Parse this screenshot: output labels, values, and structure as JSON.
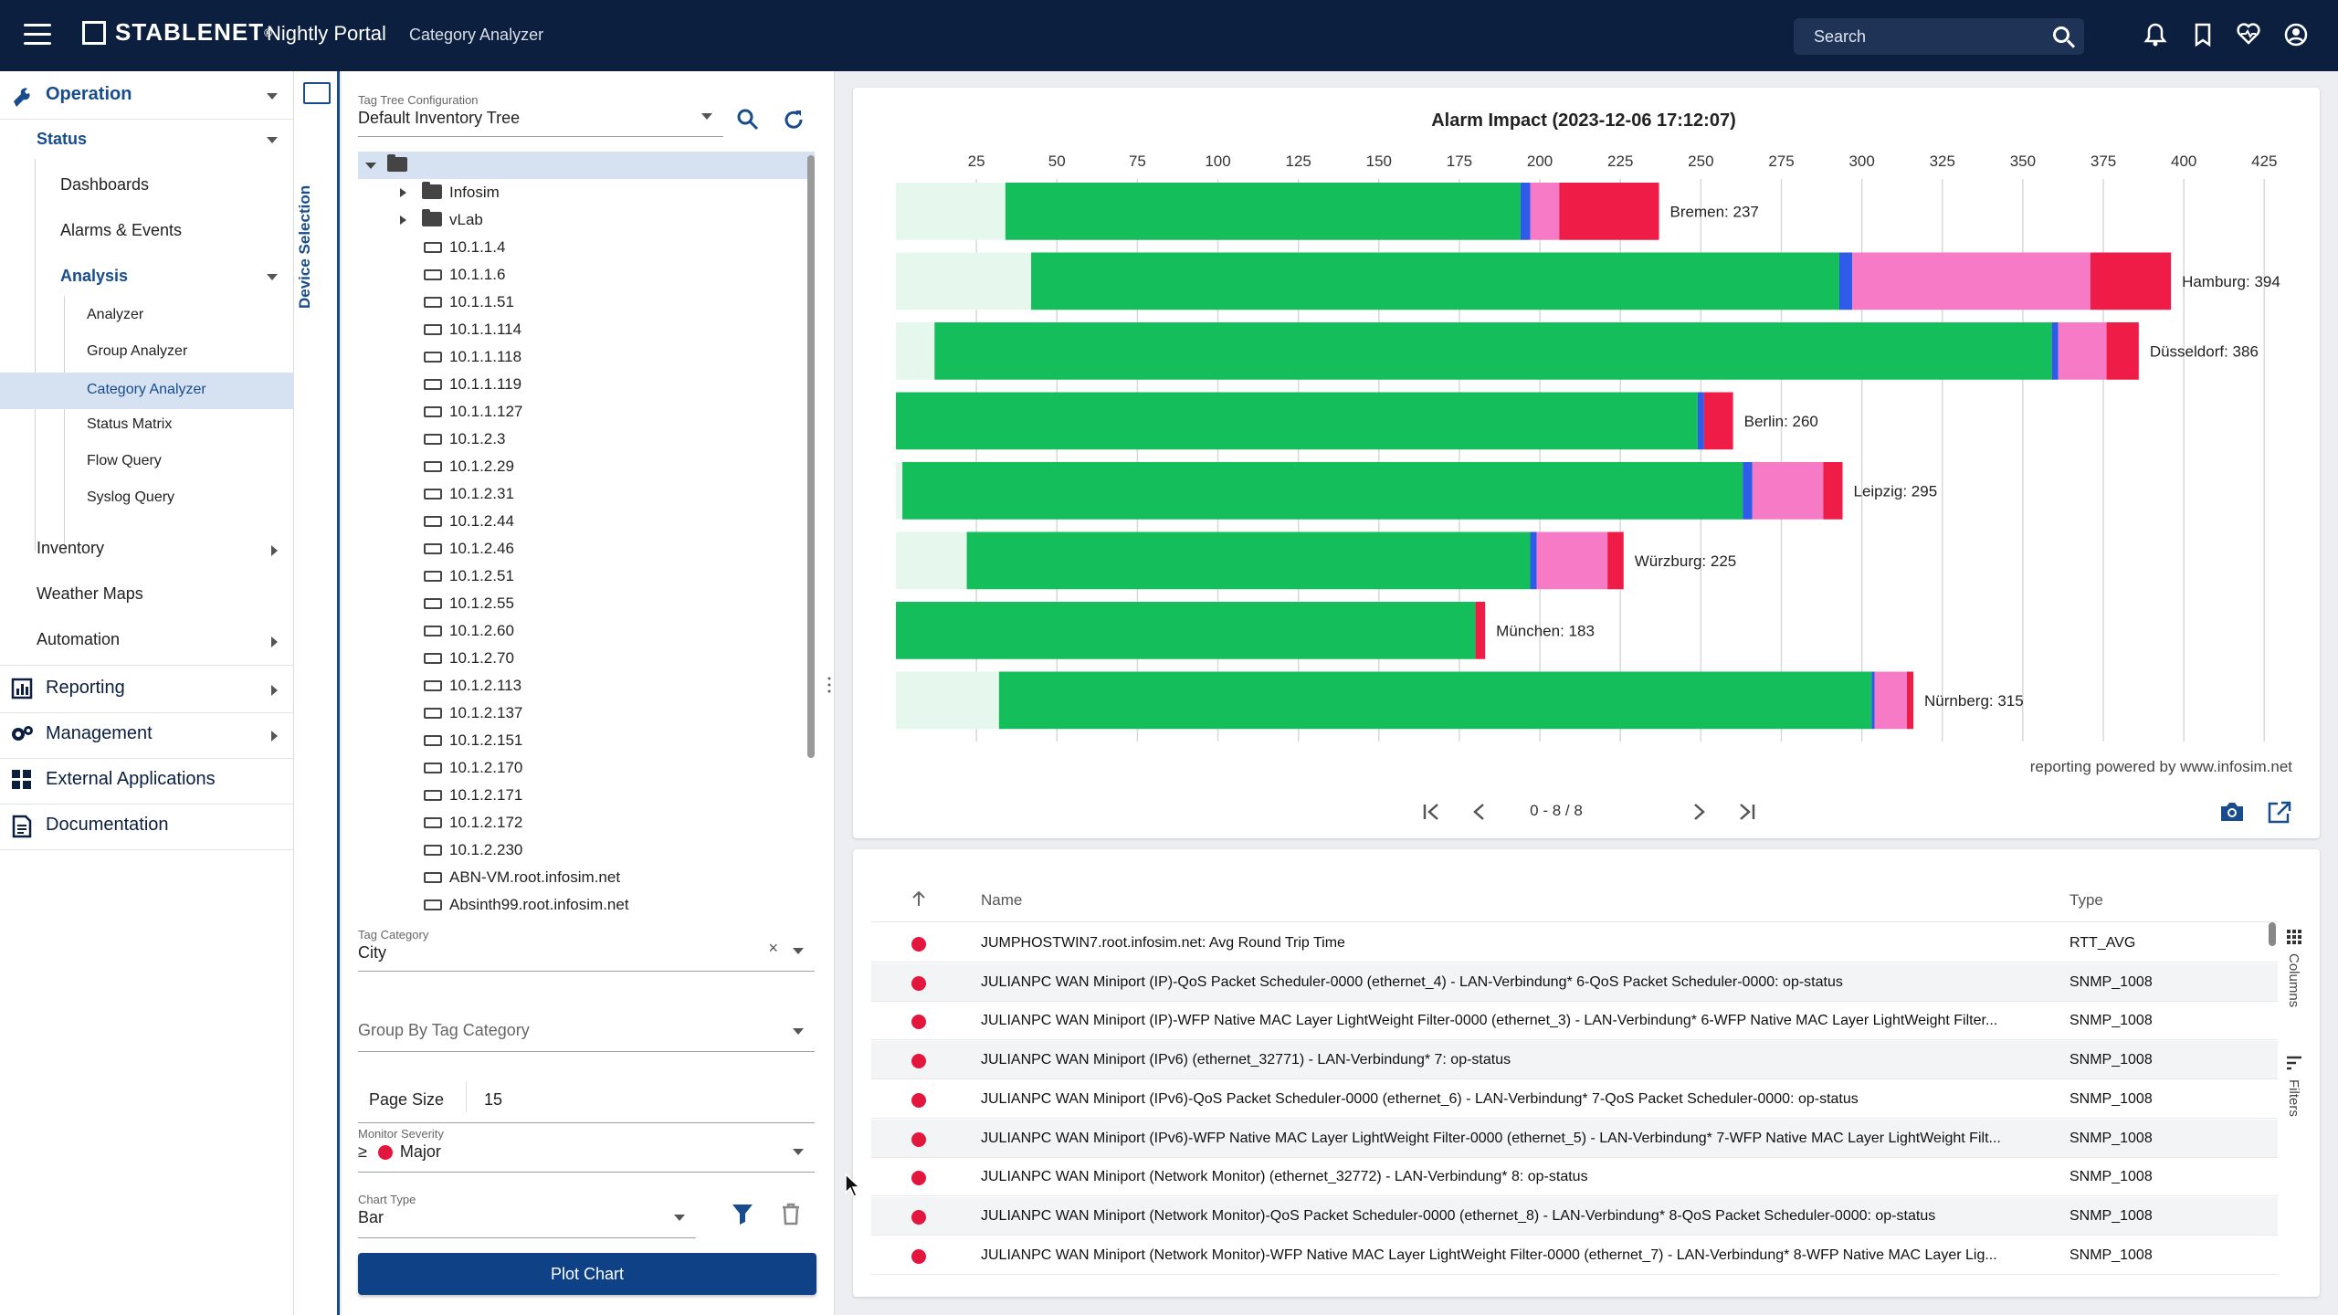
{
  "header": {
    "brand": "STABLENET",
    "reg": "®",
    "portal": "Nightly Portal",
    "breadcrumb": "Category Analyzer",
    "search_placeholder": "Search"
  },
  "nav": {
    "operation": "Operation",
    "status": "Status",
    "dashboards": "Dashboards",
    "alarms_events": "Alarms & Events",
    "analysis": "Analysis",
    "analyzer": "Analyzer",
    "group_analyzer": "Group Analyzer",
    "category_analyzer": "Category Analyzer",
    "status_matrix": "Status Matrix",
    "flow_query": "Flow Query",
    "syslog_query": "Syslog Query",
    "inventory": "Inventory",
    "weather_maps": "Weather Maps",
    "automation": "Automation",
    "reporting": "Reporting",
    "management": "Management",
    "external_apps": "External Applications",
    "documentation": "Documentation"
  },
  "device_tab_label": "Device Selection",
  "panel": {
    "tag_tree_label": "Tag Tree Configuration",
    "tag_tree_value": "Default Inventory Tree",
    "tree": [
      {
        "type": "root",
        "label": ""
      },
      {
        "type": "folder",
        "label": "Infosim"
      },
      {
        "type": "folder",
        "label": "vLab"
      },
      {
        "type": "device",
        "label": "10.1.1.4"
      },
      {
        "type": "device",
        "label": "10.1.1.6"
      },
      {
        "type": "device",
        "label": "10.1.1.51"
      },
      {
        "type": "device",
        "label": "10.1.1.114"
      },
      {
        "type": "device",
        "label": "10.1.1.118"
      },
      {
        "type": "device",
        "label": "10.1.1.119"
      },
      {
        "type": "device",
        "label": "10.1.1.127"
      },
      {
        "type": "device",
        "label": "10.1.2.3"
      },
      {
        "type": "device",
        "label": "10.1.2.29"
      },
      {
        "type": "device",
        "label": "10.1.2.31"
      },
      {
        "type": "device",
        "label": "10.1.2.44"
      },
      {
        "type": "device",
        "label": "10.1.2.46"
      },
      {
        "type": "device",
        "label": "10.1.2.51"
      },
      {
        "type": "device",
        "label": "10.1.2.55"
      },
      {
        "type": "device",
        "label": "10.1.2.60"
      },
      {
        "type": "device",
        "label": "10.1.2.70"
      },
      {
        "type": "device",
        "label": "10.1.2.113"
      },
      {
        "type": "device",
        "label": "10.1.2.137"
      },
      {
        "type": "device",
        "label": "10.1.2.151"
      },
      {
        "type": "device",
        "label": "10.1.2.170"
      },
      {
        "type": "device",
        "label": "10.1.2.171"
      },
      {
        "type": "device",
        "label": "10.1.2.172"
      },
      {
        "type": "device",
        "label": "10.1.2.230"
      },
      {
        "type": "device",
        "label": "ABN-VM.root.infosim.net"
      },
      {
        "type": "device",
        "label": "Absinth99.root.infosim.net"
      }
    ],
    "tag_category_label": "Tag Category",
    "tag_category_value": "City",
    "group_by_label": "Group By Tag Category",
    "page_size_label": "Page Size",
    "page_size_value": "15",
    "severity_label": "Monitor Severity",
    "severity_op": "≥",
    "severity_value": "Major",
    "chart_type_label": "Chart Type",
    "chart_type_value": "Bar",
    "plot_button": "Plot Chart"
  },
  "chart_data": {
    "type": "bar",
    "orientation": "horizontal",
    "stacked": true,
    "title": "Alarm Impact (2023-12-06 17:12:07)",
    "xlim": [
      0,
      432
    ],
    "xticks": [
      25,
      50,
      75,
      100,
      125,
      150,
      175,
      200,
      225,
      250,
      275,
      300,
      325,
      350,
      375,
      400,
      425
    ],
    "grid": true,
    "categories": [
      "Bremen",
      "Hamburg",
      "Düsseldorf",
      "Berlin",
      "Leipzig",
      "Würzburg",
      "München",
      "Nürnberg"
    ],
    "totals": [
      237,
      394,
      386,
      260,
      295,
      225,
      183,
      315
    ],
    "series": [
      {
        "color": "#e6f7ee",
        "values": [
          34,
          42,
          12,
          0,
          2,
          22,
          0,
          32
        ]
      },
      {
        "color": "#13be5b",
        "values": [
          160,
          251,
          347,
          249,
          261,
          175,
          180,
          271
        ]
      },
      {
        "color": "#2e5be8",
        "values": [
          3,
          4,
          2,
          2,
          3,
          2,
          0,
          1
        ]
      },
      {
        "color": "#f77ac7",
        "values": [
          9,
          74,
          15,
          0,
          22,
          22,
          0,
          10
        ]
      },
      {
        "color": "#f01c48",
        "values": [
          31,
          25,
          10,
          9,
          6,
          5,
          3,
          2
        ]
      }
    ],
    "footer": "reporting powered by www.infosim.net"
  },
  "pager": {
    "text": "0 - 8 / 8"
  },
  "grid": {
    "col_name": "Name",
    "col_type": "Type",
    "side_columns": "Columns",
    "side_filters": "Filters",
    "rows": [
      {
        "name": "JUMPHOSTWIN7.root.infosim.net: Avg Round Trip Time",
        "type": "RTT_AVG"
      },
      {
        "name": "JULIANPC WAN Miniport (IP)-QoS Packet Scheduler-0000 (ethernet_4) - LAN-Verbindung* 6-QoS Packet Scheduler-0000: op-status",
        "type": "SNMP_1008"
      },
      {
        "name": "JULIANPC WAN Miniport (IP)-WFP Native MAC Layer LightWeight Filter-0000 (ethernet_3) - LAN-Verbindung* 6-WFP Native MAC Layer LightWeight Filter...",
        "type": "SNMP_1008"
      },
      {
        "name": "JULIANPC WAN Miniport (IPv6) (ethernet_32771) - LAN-Verbindung* 7: op-status",
        "type": "SNMP_1008"
      },
      {
        "name": "JULIANPC WAN Miniport (IPv6)-QoS Packet Scheduler-0000 (ethernet_6) - LAN-Verbindung* 7-QoS Packet Scheduler-0000: op-status",
        "type": "SNMP_1008"
      },
      {
        "name": "JULIANPC WAN Miniport (IPv6)-WFP Native MAC Layer LightWeight Filter-0000 (ethernet_5) - LAN-Verbindung* 7-WFP Native MAC Layer LightWeight Filt...",
        "type": "SNMP_1008"
      },
      {
        "name": "JULIANPC WAN Miniport (Network Monitor) (ethernet_32772) - LAN-Verbindung* 8: op-status",
        "type": "SNMP_1008"
      },
      {
        "name": "JULIANPC WAN Miniport (Network Monitor)-QoS Packet Scheduler-0000 (ethernet_8) - LAN-Verbindung* 8-QoS Packet Scheduler-0000: op-status",
        "type": "SNMP_1008"
      },
      {
        "name": "JULIANPC WAN Miniport (Network Monitor)-WFP Native MAC Layer LightWeight Filter-0000 (ethernet_7) - LAN-Verbindung* 8-WFP Native MAC Layer Lig...",
        "type": "SNMP_1008"
      }
    ]
  },
  "colors": {
    "header_bg": "#0c1f3f",
    "accent": "#184c8d",
    "button": "#0e4186",
    "major": "#e3173d"
  }
}
